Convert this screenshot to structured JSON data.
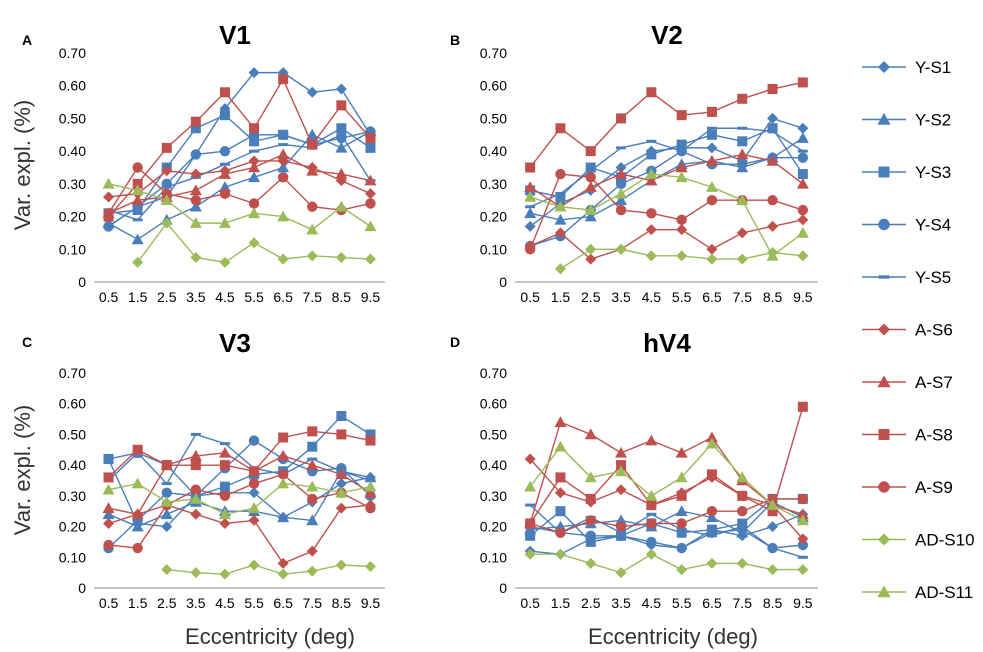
{
  "figure": {
    "ylabel": "Var. expl. (%)",
    "xlabel": "Eccentricity (deg)"
  },
  "legend": [
    {
      "name": "Y-S1",
      "color": "#4a7ebb",
      "marker": "diamond"
    },
    {
      "name": "Y-S2",
      "color": "#4a7ebb",
      "marker": "triangle"
    },
    {
      "name": "Y-S3",
      "color": "#4a7ebb",
      "marker": "square"
    },
    {
      "name": "Y-S4",
      "color": "#4a7ebb",
      "marker": "circle"
    },
    {
      "name": "Y-S5",
      "color": "#4a7ebb",
      "marker": "dash"
    },
    {
      "name": "A-S6",
      "color": "#c0504d",
      "marker": "diamond"
    },
    {
      "name": "A-S7",
      "color": "#c0504d",
      "marker": "triangle"
    },
    {
      "name": "A-S8",
      "color": "#c0504d",
      "marker": "square"
    },
    {
      "name": "A-S9",
      "color": "#c0504d",
      "marker": "circle"
    },
    {
      "name": "AD-S10",
      "color": "#9bbb59",
      "marker": "diamond"
    },
    {
      "name": "AD-S11",
      "color": "#9bbb59",
      "marker": "triangle"
    }
  ],
  "chart_data": [
    {
      "type": "line",
      "panel": "A",
      "title": "V1",
      "xlabel": "",
      "ylabel": "Var. expl. (%)",
      "x": [
        0.5,
        1.5,
        2.5,
        3.5,
        4.5,
        5.5,
        6.5,
        7.5,
        8.5,
        9.5
      ],
      "xticks": [
        "0.5",
        "1.5",
        "2.5",
        "3.5",
        "4.5",
        "5.5",
        "6.5",
        "7.5",
        "8.5",
        "9.5"
      ],
      "yticks": [
        "0",
        "0.10",
        "0.20",
        "0.30",
        "0.40",
        "0.50",
        "0.60",
        "0.70"
      ],
      "ylim": [
        0,
        0.7
      ],
      "series": [
        {
          "name": "Y-S1",
          "values": [
            0.17,
            0.23,
            0.26,
            0.39,
            0.53,
            0.64,
            0.64,
            0.58,
            0.59,
            0.45
          ]
        },
        {
          "name": "Y-S2",
          "values": [
            0.18,
            0.13,
            0.19,
            0.23,
            0.29,
            0.32,
            0.35,
            0.45,
            0.41,
            0.46
          ]
        },
        {
          "name": "Y-S3",
          "values": [
            0.21,
            0.22,
            0.35,
            0.47,
            0.51,
            0.43,
            0.45,
            0.42,
            0.47,
            0.41
          ]
        },
        {
          "name": "Y-S4",
          "values": [
            0.17,
            0.23,
            0.3,
            0.39,
            0.4,
            0.45,
            0.45,
            0.42,
            0.44,
            0.46
          ]
        },
        {
          "name": "Y-S5",
          "values": [
            0.22,
            0.19,
            0.29,
            0.32,
            0.36,
            0.4,
            0.42,
            0.41,
            0.45,
            0.31
          ]
        },
        {
          "name": "A-S6",
          "values": [
            0.26,
            0.27,
            0.34,
            0.33,
            0.34,
            0.37,
            0.37,
            0.35,
            0.31,
            0.27
          ]
        },
        {
          "name": "A-S7",
          "values": [
            0.21,
            0.25,
            0.26,
            0.28,
            0.33,
            0.35,
            0.39,
            0.34,
            0.33,
            0.31
          ]
        },
        {
          "name": "A-S8",
          "values": [
            0.2,
            0.3,
            0.41,
            0.49,
            0.58,
            0.47,
            0.62,
            0.42,
            0.54,
            0.44
          ]
        },
        {
          "name": "A-S9",
          "values": [
            0.21,
            0.35,
            0.27,
            0.25,
            0.27,
            0.24,
            0.32,
            0.23,
            0.22,
            0.24
          ]
        },
        {
          "name": "AD-S10",
          "values": [
            null,
            0.06,
            0.18,
            0.075,
            0.06,
            0.12,
            0.07,
            0.08,
            0.075,
            0.07
          ]
        },
        {
          "name": "AD-S11",
          "values": [
            0.3,
            0.28,
            0.25,
            0.18,
            0.18,
            0.21,
            0.2,
            0.16,
            0.23,
            0.17
          ]
        }
      ]
    },
    {
      "type": "line",
      "panel": "B",
      "title": "V2",
      "xlabel": "",
      "ylabel": "",
      "x": [
        0.5,
        1.5,
        2.5,
        3.5,
        4.5,
        5.5,
        6.5,
        7.5,
        8.5,
        9.5
      ],
      "xticks": [
        "0.5",
        "1.5",
        "2.5",
        "3.5",
        "4.5",
        "5.5",
        "6.5",
        "7.5",
        "8.5",
        "9.5"
      ],
      "yticks": [
        "0",
        "0.10",
        "0.20",
        "0.30",
        "0.40",
        "0.50",
        "0.60",
        "0.70"
      ],
      "ylim": [
        0,
        0.7
      ],
      "series": [
        {
          "name": "Y-S1",
          "values": [
            0.17,
            0.24,
            0.28,
            0.35,
            0.4,
            0.41,
            0.41,
            0.37,
            0.5,
            0.47
          ]
        },
        {
          "name": "Y-S2",
          "values": [
            0.21,
            0.19,
            0.2,
            0.25,
            0.31,
            0.36,
            0.37,
            0.35,
            0.38,
            0.44
          ]
        },
        {
          "name": "Y-S3",
          "values": [
            0.28,
            0.26,
            0.35,
            0.32,
            0.39,
            0.42,
            0.45,
            0.43,
            0.47,
            0.33
          ]
        },
        {
          "name": "Y-S4",
          "values": [
            0.11,
            0.14,
            0.22,
            0.3,
            0.34,
            0.4,
            0.36,
            0.36,
            0.38,
            0.38
          ]
        },
        {
          "name": "Y-S5",
          "values": [
            0.23,
            0.27,
            0.34,
            0.41,
            0.43,
            0.4,
            0.47,
            0.47,
            0.46,
            0.4
          ]
        },
        {
          "name": "A-S6",
          "values": [
            0.11,
            0.15,
            0.07,
            0.1,
            0.16,
            0.16,
            0.1,
            0.15,
            0.17,
            0.19
          ]
        },
        {
          "name": "A-S7",
          "values": [
            0.29,
            0.23,
            0.29,
            0.33,
            0.31,
            0.35,
            0.37,
            0.39,
            0.37,
            0.3
          ]
        },
        {
          "name": "A-S8",
          "values": [
            0.35,
            0.47,
            0.4,
            0.5,
            0.58,
            0.51,
            0.52,
            0.56,
            0.59,
            0.61
          ]
        },
        {
          "name": "A-S9",
          "values": [
            0.1,
            0.33,
            0.32,
            0.22,
            0.21,
            0.19,
            0.25,
            0.25,
            0.25,
            0.22
          ]
        },
        {
          "name": "AD-S10",
          "values": [
            null,
            0.04,
            0.1,
            0.1,
            0.08,
            0.08,
            0.07,
            0.07,
            0.09,
            0.08
          ]
        },
        {
          "name": "AD-S11",
          "values": [
            0.26,
            0.23,
            0.22,
            0.27,
            0.33,
            0.32,
            0.29,
            0.25,
            0.08,
            0.15
          ]
        }
      ]
    },
    {
      "type": "line",
      "panel": "C",
      "title": "V3",
      "xlabel": "Eccentricity (deg)",
      "ylabel": "Var. expl. (%)",
      "x": [
        0.5,
        1.5,
        2.5,
        3.5,
        4.5,
        5.5,
        6.5,
        7.5,
        8.5,
        9.5
      ],
      "xticks": [
        "0.5",
        "1.5",
        "2.5",
        "3.5",
        "4.5",
        "5.5",
        "6.5",
        "7.5",
        "8.5",
        "9.5"
      ],
      "yticks": [
        "0",
        "0.10",
        "0.20",
        "0.30",
        "0.40",
        "0.50",
        "0.60",
        "0.70"
      ],
      "ylim": [
        0,
        0.7
      ],
      "series": [
        {
          "name": "Y-S1",
          "values": [
            0.42,
            0.21,
            0.2,
            0.3,
            0.31,
            0.31,
            0.23,
            0.28,
            0.34,
            0.36
          ]
        },
        {
          "name": "Y-S2",
          "values": [
            0.24,
            0.2,
            0.24,
            0.28,
            0.25,
            0.25,
            0.23,
            0.22,
            0.38,
            0.36
          ]
        },
        {
          "name": "Y-S3",
          "values": [
            0.42,
            0.44,
            0.4,
            0.3,
            0.33,
            0.37,
            0.38,
            0.46,
            0.56,
            0.5
          ]
        },
        {
          "name": "Y-S4",
          "values": [
            0.13,
            0.22,
            0.31,
            0.3,
            0.39,
            0.48,
            0.42,
            0.38,
            0.39,
            0.3
          ]
        },
        {
          "name": "Y-S5",
          "values": [
            0.35,
            0.44,
            0.34,
            0.5,
            0.47,
            0.39,
            0.37,
            0.42,
            0.38,
            0.35
          ]
        },
        {
          "name": "A-S6",
          "values": [
            0.21,
            0.24,
            0.27,
            0.24,
            0.21,
            0.22,
            0.08,
            0.12,
            0.26,
            0.27
          ]
        },
        {
          "name": "A-S7",
          "values": [
            0.26,
            0.24,
            0.4,
            0.43,
            0.44,
            0.38,
            0.43,
            0.4,
            0.37,
            0.31
          ]
        },
        {
          "name": "A-S8",
          "values": [
            0.36,
            0.45,
            0.4,
            0.4,
            0.4,
            0.38,
            0.49,
            0.51,
            0.5,
            0.48
          ]
        },
        {
          "name": "A-S9",
          "values": [
            0.14,
            0.13,
            0.27,
            0.32,
            0.3,
            0.34,
            0.37,
            0.29,
            0.31,
            0.26
          ]
        },
        {
          "name": "AD-S10",
          "values": [
            null,
            null,
            0.06,
            0.05,
            0.045,
            0.075,
            0.045,
            0.055,
            0.075,
            0.07
          ]
        },
        {
          "name": "AD-S11",
          "values": [
            0.32,
            0.34,
            0.28,
            0.29,
            0.24,
            0.26,
            0.34,
            0.33,
            0.31,
            0.33
          ]
        }
      ]
    },
    {
      "type": "line",
      "panel": "D",
      "title": "hV4",
      "xlabel": "Eccentricity (deg)",
      "ylabel": "",
      "x": [
        0.5,
        1.5,
        2.5,
        3.5,
        4.5,
        5.5,
        6.5,
        7.5,
        8.5,
        9.5
      ],
      "xticks": [
        "0.5",
        "1.5",
        "2.5",
        "3.5",
        "4.5",
        "5.5",
        "6.5",
        "7.5",
        "8.5",
        "9.5"
      ],
      "yticks": [
        "0",
        "0.10",
        "0.20",
        "0.30",
        "0.40",
        "0.50",
        "0.60",
        "0.70"
      ],
      "ylim": [
        0,
        0.7
      ],
      "series": [
        {
          "name": "Y-S1",
          "values": [
            0.12,
            0.11,
            0.16,
            0.17,
            0.14,
            0.13,
            0.19,
            0.17,
            0.2,
            0.24
          ]
        },
        {
          "name": "Y-S2",
          "values": [
            0.19,
            0.2,
            0.21,
            0.22,
            0.2,
            0.25,
            0.23,
            0.18,
            0.28,
            0.23
          ]
        },
        {
          "name": "Y-S3",
          "values": [
            0.17,
            0.25,
            0.15,
            0.17,
            0.21,
            0.18,
            0.19,
            0.21,
            0.29,
            0.29
          ]
        },
        {
          "name": "Y-S4",
          "values": [
            0.2,
            0.18,
            0.17,
            0.17,
            0.15,
            0.13,
            0.18,
            0.19,
            0.13,
            0.14
          ]
        },
        {
          "name": "Y-S5",
          "values": [
            0.27,
            0.18,
            0.23,
            0.18,
            0.24,
            0.19,
            0.17,
            0.2,
            0.13,
            0.1
          ]
        },
        {
          "name": "A-S6",
          "values": [
            0.42,
            0.31,
            0.28,
            0.32,
            0.27,
            0.31,
            0.36,
            0.3,
            0.27,
            0.16
          ]
        },
        {
          "name": "A-S7",
          "values": [
            0.21,
            0.54,
            0.5,
            0.44,
            0.48,
            0.44,
            0.49,
            0.35,
            0.27,
            0.24
          ]
        },
        {
          "name": "A-S8",
          "values": [
            0.21,
            0.36,
            0.29,
            0.4,
            0.27,
            0.3,
            0.37,
            0.3,
            0.25,
            0.59
          ]
        },
        {
          "name": "A-S9",
          "values": [
            0.21,
            0.18,
            0.22,
            0.2,
            0.21,
            0.21,
            0.25,
            0.25,
            0.29,
            0.29
          ]
        },
        {
          "name": "AD-S10",
          "values": [
            0.11,
            0.11,
            0.08,
            0.05,
            0.11,
            0.06,
            0.08,
            0.08,
            0.06,
            0.06
          ]
        },
        {
          "name": "AD-S11",
          "values": [
            0.33,
            0.46,
            0.36,
            0.38,
            0.3,
            0.36,
            0.47,
            0.36,
            0.27,
            0.22
          ]
        }
      ]
    }
  ]
}
